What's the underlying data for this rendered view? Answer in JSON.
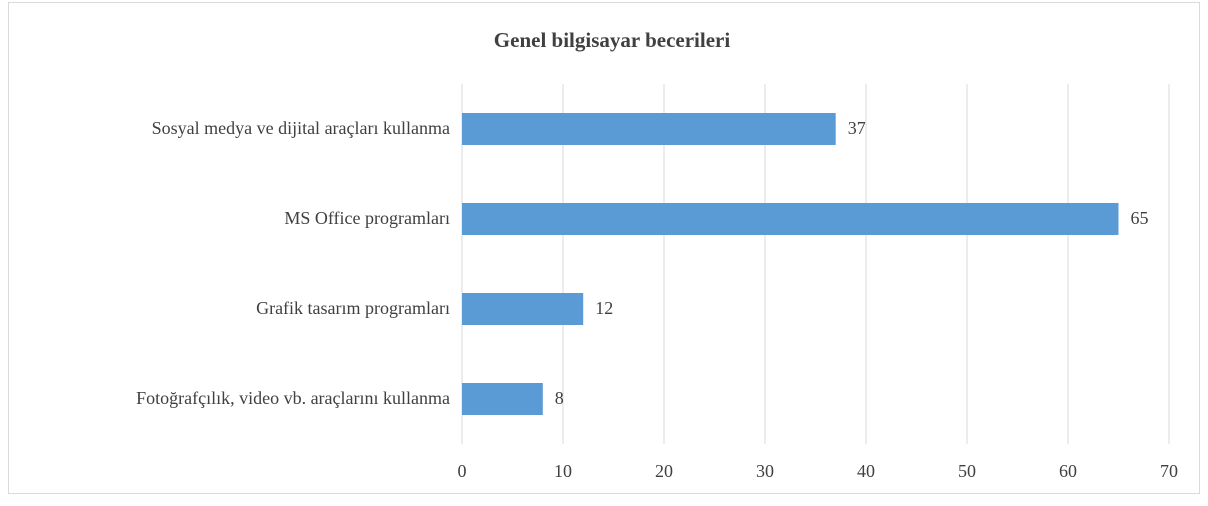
{
  "chart_data": {
    "type": "bar",
    "title": "Genel bilgisayar becerileri",
    "categories": [
      "Sosyal medya ve dijital araçları kullanma",
      "MS Office programları",
      "Grafik tasarım programları",
      "Fotoğrafçılık, video vb. araçlarını kullanma"
    ],
    "values": [
      37,
      65,
      12,
      8
    ],
    "color": "#5b9bd5",
    "xlim": [
      0,
      70
    ],
    "xticks": [
      0,
      10,
      20,
      30,
      40,
      50,
      60,
      70
    ],
    "grid": true
  }
}
